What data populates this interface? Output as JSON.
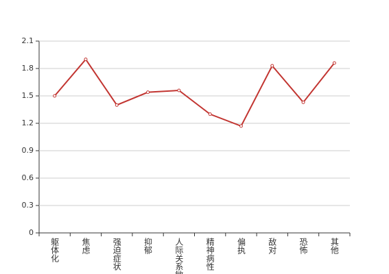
{
  "chart_data": {
    "type": "line",
    "categories": [
      "躯体化",
      "焦虑",
      "强迫症状",
      "抑郁",
      "人际关系敏感",
      "精神病性",
      "偏执",
      "敌对",
      "恐怖",
      "其他"
    ],
    "values": [
      1.5,
      1.9,
      1.4,
      1.54,
      1.56,
      1.3,
      1.17,
      1.83,
      1.43,
      1.86
    ],
    "color": "#c23531",
    "ylim": [
      0,
      2.1
    ],
    "yticks": [
      0,
      0.3,
      0.6,
      0.9,
      1.2,
      1.5,
      1.8,
      2.1
    ],
    "grid": true
  }
}
